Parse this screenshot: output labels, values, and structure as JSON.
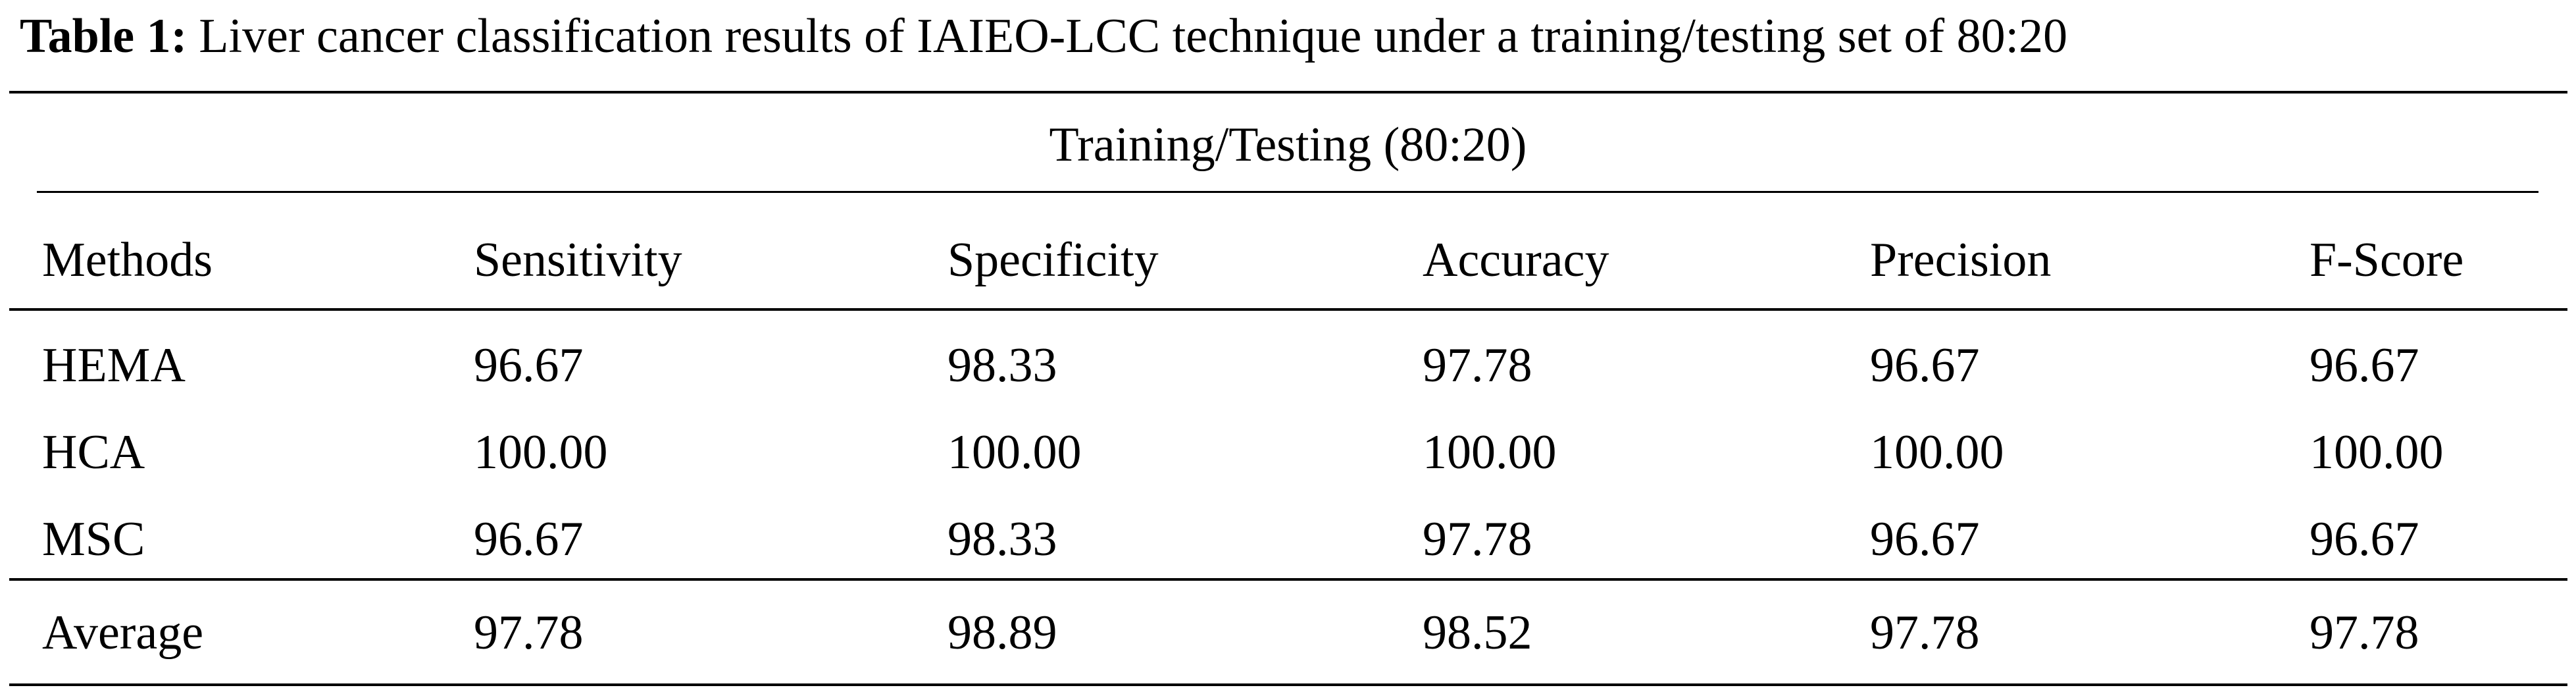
{
  "caption": {
    "label": "Table 1:",
    "text": "Liver cancer classification results of IAIEO-LCC technique under a training/testing set of 80:20"
  },
  "table": {
    "group_header": "Training/Testing (80:20)",
    "columns": [
      "Methods",
      "Sensitivity",
      "Specificity",
      "Accuracy",
      "Precision",
      "F-Score"
    ],
    "rows": [
      [
        "HEMA",
        "96.67",
        "98.33",
        "97.78",
        "96.67",
        "96.67"
      ],
      [
        "HCA",
        "100.00",
        "100.00",
        "100.00",
        "100.00",
        "100.00"
      ],
      [
        "MSC",
        "96.67",
        "98.33",
        "97.78",
        "96.67",
        "96.67"
      ]
    ],
    "average": [
      "Average",
      "97.78",
      "98.89",
      "98.52",
      "97.78",
      "97.78"
    ]
  }
}
